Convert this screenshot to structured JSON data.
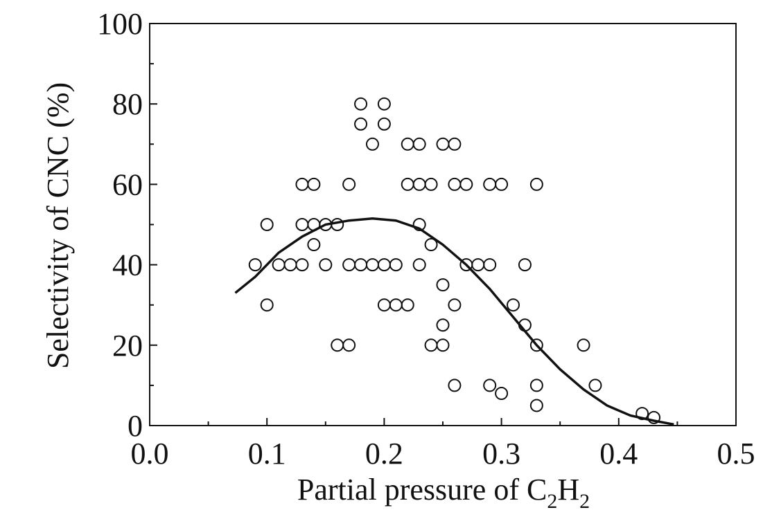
{
  "chart_data": {
    "type": "scatter",
    "xlabel": "Partial pressure of C2H2",
    "xlabel_parts": {
      "main": "Partial pressure of C",
      "sub1": "2",
      "mid": "H",
      "sub2": "2"
    },
    "ylabel": "Selectivity of CNC (%)",
    "xlim": [
      0.0,
      0.5
    ],
    "ylim": [
      0,
      100
    ],
    "x_ticks": [
      "0.0",
      "0.1",
      "0.2",
      "0.3",
      "0.4",
      "0.5"
    ],
    "y_ticks": [
      "0",
      "20",
      "40",
      "60",
      "80",
      "100"
    ],
    "grid": false,
    "series": [
      {
        "kind": "markers",
        "marker": "open-circle",
        "points": [
          [
            0.09,
            40
          ],
          [
            0.1,
            50
          ],
          [
            0.1,
            30
          ],
          [
            0.11,
            40
          ],
          [
            0.12,
            40
          ],
          [
            0.13,
            60
          ],
          [
            0.13,
            50
          ],
          [
            0.13,
            40
          ],
          [
            0.14,
            60
          ],
          [
            0.14,
            50
          ],
          [
            0.14,
            45
          ],
          [
            0.15,
            50
          ],
          [
            0.15,
            40
          ],
          [
            0.16,
            50
          ],
          [
            0.16,
            20
          ],
          [
            0.17,
            60
          ],
          [
            0.17,
            40
          ],
          [
            0.17,
            20
          ],
          [
            0.18,
            80
          ],
          [
            0.18,
            75
          ],
          [
            0.18,
            40
          ],
          [
            0.19,
            70
          ],
          [
            0.19,
            40
          ],
          [
            0.2,
            80
          ],
          [
            0.2,
            75
          ],
          [
            0.2,
            40
          ],
          [
            0.2,
            30
          ],
          [
            0.21,
            40
          ],
          [
            0.21,
            30
          ],
          [
            0.22,
            70
          ],
          [
            0.22,
            60
          ],
          [
            0.22,
            30
          ],
          [
            0.23,
            70
          ],
          [
            0.23,
            60
          ],
          [
            0.23,
            50
          ],
          [
            0.23,
            40
          ],
          [
            0.24,
            60
          ],
          [
            0.24,
            45
          ],
          [
            0.24,
            20
          ],
          [
            0.25,
            70
          ],
          [
            0.25,
            35
          ],
          [
            0.25,
            25
          ],
          [
            0.25,
            20
          ],
          [
            0.26,
            70
          ],
          [
            0.26,
            60
          ],
          [
            0.26,
            30
          ],
          [
            0.26,
            10
          ],
          [
            0.27,
            60
          ],
          [
            0.27,
            40
          ],
          [
            0.28,
            40
          ],
          [
            0.29,
            60
          ],
          [
            0.29,
            40
          ],
          [
            0.29,
            10
          ],
          [
            0.3,
            60
          ],
          [
            0.3,
            8
          ],
          [
            0.31,
            30
          ],
          [
            0.32,
            40
          ],
          [
            0.32,
            25
          ],
          [
            0.33,
            60
          ],
          [
            0.33,
            20
          ],
          [
            0.33,
            10
          ],
          [
            0.33,
            5
          ],
          [
            0.37,
            20
          ],
          [
            0.38,
            10
          ],
          [
            0.42,
            3
          ],
          [
            0.43,
            2
          ]
        ]
      },
      {
        "kind": "fit-curve",
        "points": [
          [
            0.073,
            33
          ],
          [
            0.09,
            37
          ],
          [
            0.11,
            43
          ],
          [
            0.13,
            47
          ],
          [
            0.15,
            50
          ],
          [
            0.17,
            51
          ],
          [
            0.19,
            51.5
          ],
          [
            0.21,
            51
          ],
          [
            0.23,
            49
          ],
          [
            0.25,
            45
          ],
          [
            0.27,
            40
          ],
          [
            0.29,
            34
          ],
          [
            0.31,
            27
          ],
          [
            0.33,
            20
          ],
          [
            0.35,
            14
          ],
          [
            0.37,
            9
          ],
          [
            0.39,
            5
          ],
          [
            0.41,
            2.5
          ],
          [
            0.43,
            1.2
          ],
          [
            0.447,
            0.3
          ]
        ]
      }
    ],
    "colors": {
      "axis": "#111111",
      "marker": "#111111",
      "curve": "#111111",
      "background": "#ffffff"
    }
  }
}
